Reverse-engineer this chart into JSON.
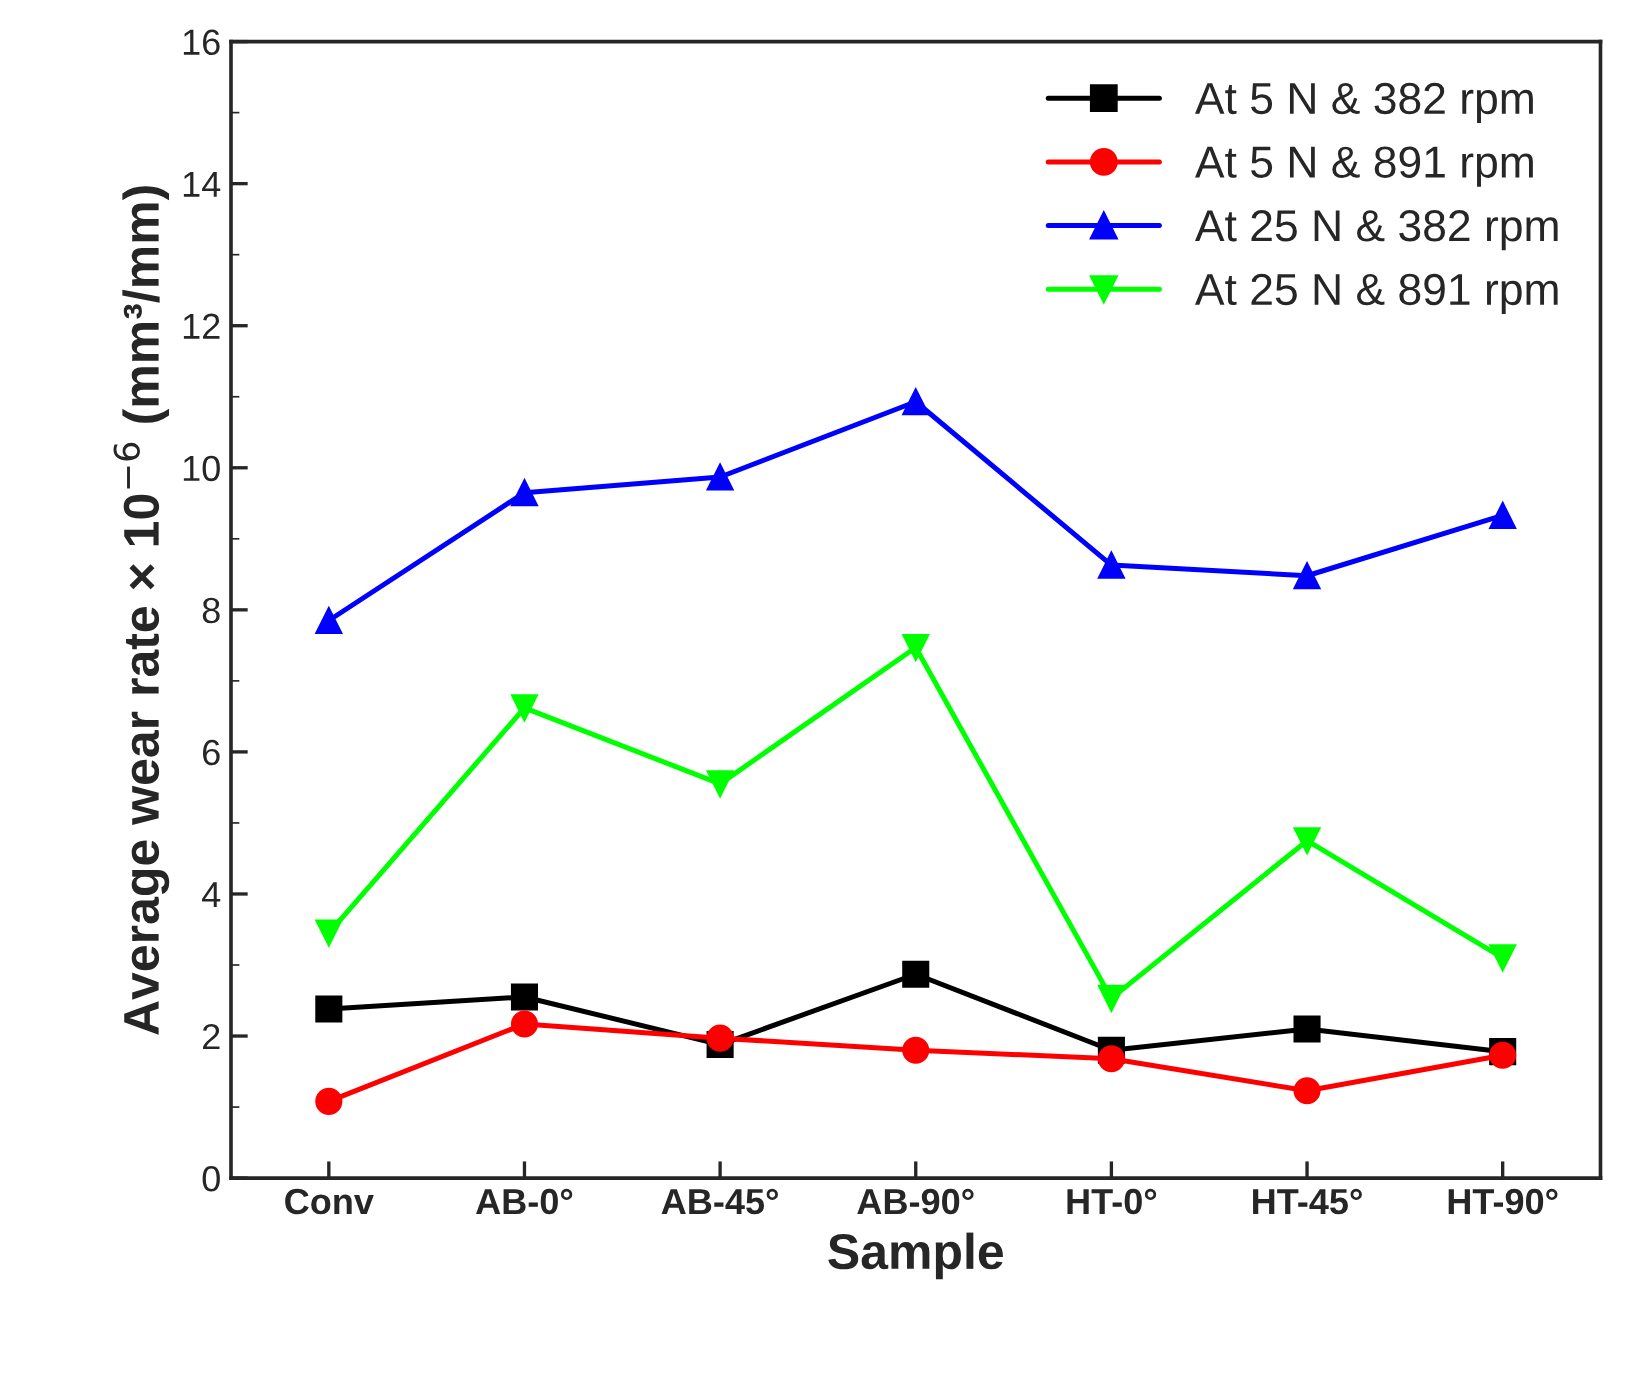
{
  "chart_data": {
    "type": "line",
    "xlabel": "Sample",
    "ylabel": "Average wear rate × 10$^{−6}$ (mm³/mm)",
    "categories": [
      "Conv",
      "AB-0°",
      "AB-45°",
      "AB-90°",
      "HT-0°",
      "HT-45°",
      "HT-90°"
    ],
    "series": [
      {
        "name": "At 5 N & 382 rpm",
        "color": "#000000",
        "marker": "square",
        "values": [
          2.38,
          2.55,
          1.88,
          2.87,
          1.8,
          2.1,
          1.78
        ]
      },
      {
        "name": "At 5 N & 891 rpm",
        "color": "#ff0000",
        "marker": "circle",
        "values": [
          1.08,
          2.17,
          1.97,
          1.8,
          1.68,
          1.23,
          1.73
        ]
      },
      {
        "name": "At 25 N & 382 rpm",
        "color": "#0000ff",
        "marker": "triangle",
        "values": [
          7.85,
          9.65,
          9.87,
          10.93,
          8.63,
          8.48,
          9.33
        ]
      },
      {
        "name": "At 25 N & 891 rpm",
        "color": "#00ff00",
        "marker": "triangle_down",
        "values": [
          3.45,
          6.62,
          5.55,
          7.47,
          2.53,
          4.75,
          3.1
        ]
      }
    ],
    "ylim": [
      0,
      16
    ],
    "yticks": [
      0,
      2,
      4,
      6,
      8,
      10,
      12,
      14,
      16
    ],
    "grid": false,
    "legend": "top right",
    "line_style": "solid"
  }
}
